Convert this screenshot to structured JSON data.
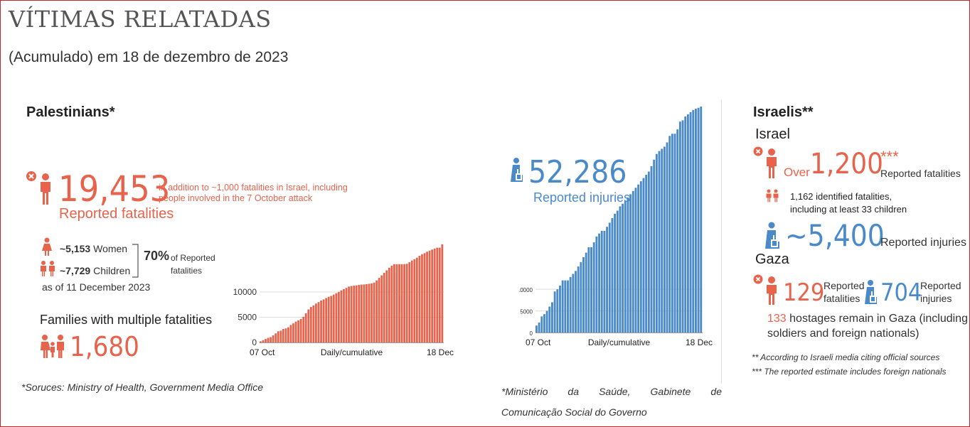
{
  "header": {
    "title": "VÍTIMAS RELATADAS",
    "subtitle": "(Acumulado) em 18 de dezembro de 2023"
  },
  "palestinians": {
    "heading": "Palestinians*",
    "fatalities_value": "19,453",
    "fatalities_label": "Reported fatalities",
    "addition_line1": "in addition to ~1,000 fatalities in Israel, including",
    "addition_line2": "people involved in the 7 October attack",
    "injuries_value": "52,286",
    "injuries_label": "Reported injuries",
    "women_value": "~5,153",
    "women_label": "Women",
    "children_value": "~7,729",
    "children_label": "Children",
    "as_of": "as of 11 December 2023",
    "percent_value": "70%",
    "percent_label_1": "of Reported",
    "percent_label_2": "fatalities",
    "families_label": "Families with multiple fatalities",
    "families_value": "1,680",
    "source_left": "*Soruces: Ministry of Health, Government Media Office",
    "source_mid_1": "*Ministério da Saúde, Gabinete de",
    "source_mid_2": "Comunicação Social do Governo"
  },
  "israelis": {
    "heading": "Israelis**",
    "israel_label": "Israel",
    "over_label": "Over",
    "fatalities_value": "1,200",
    "fatalities_stars": "***",
    "fatalities_label": "Reported fatalities",
    "identified_line1": "1,162 identified fatalities,",
    "identified_line2": "including at least 33 children",
    "injuries_value": "~5,400",
    "injuries_label": "Reported injuries",
    "gaza_label": "Gaza",
    "gaza_fatalities_value": "129",
    "gaza_fatalities_label_1": "Reported",
    "gaza_fatalities_label_2": "fatalities",
    "gaza_injuries_value": "704",
    "gaza_injuries_label_1": "Reported",
    "gaza_injuries_label_2": "injuries",
    "hostages_value": "133",
    "hostages_line1": "hostages remain in Gaza (including",
    "hostages_line2": "soldiers and foreign nationals)",
    "note1": "** According to Israeli media citing official sources",
    "note2": "*** The reported estimate includes foreign nationals"
  },
  "colors": {
    "orange": "#e8634c",
    "blue": "#4a8ac8"
  },
  "icons": {
    "fatality": "person-with-x-icon",
    "injury": "injured-person-icon",
    "woman": "woman-icon",
    "children": "children-icon",
    "family": "family-icon"
  },
  "chart_data": [
    {
      "type": "bar",
      "x_start_label": "07 Oct",
      "x_end_label": "18 Dec",
      "xlabel": "Daily/cumulative",
      "ylim": [
        0,
        20000
      ],
      "yticks": [
        0,
        5000,
        10000
      ],
      "color": "#e8634c",
      "values": [
        232,
        436,
        687,
        900,
        1055,
        1417,
        1799,
        2215,
        2329,
        2670,
        2778,
        3000,
        3478,
        3785,
        4137,
        4385,
        4651,
        5087,
        5791,
        6546,
        7028,
        7326,
        7703,
        8005,
        8306,
        8525,
        8796,
        9061,
        9227,
        9488,
        9770,
        10022,
        10328,
        10569,
        10818,
        11078,
        11180,
        11255,
        11320,
        11400,
        11470,
        11500,
        11560,
        11630,
        11700,
        11870,
        12300,
        12800,
        13300,
        13800,
        14300,
        14800,
        15207,
        15523,
        15523,
        15523,
        15523,
        15523,
        15599,
        15900,
        16248,
        16500,
        16800,
        17177,
        17487,
        17700,
        17997,
        18205,
        18412,
        18608,
        18787,
        18787,
        19453
      ]
    },
    {
      "type": "bar",
      "x_start_label": "07 Oct",
      "x_end_label": "18 Dec",
      "xlabel": "Daily/cumulative",
      "ylim": [
        0,
        52286
      ],
      "yticks": [
        0,
        5000,
        10000
      ],
      "color": "#4a8ac8",
      "values": [
        1610,
        2300,
        3726,
        4250,
        5000,
        6000,
        7000,
        9500,
        10000,
        10859,
        12065,
        12065,
        12065,
        12850,
        13561,
        14245,
        15273,
        16297,
        17439,
        18484,
        19734,
        19734,
        20861,
        22219,
        22911,
        23516,
        23516,
        24454,
        25408,
        26475,
        27490,
        28200,
        29200,
        29800,
        30500,
        31250,
        32000,
        32750,
        33500,
        34250,
        35000,
        35750,
        36500,
        37247,
        38500,
        40000,
        41316,
        42000,
        42500,
        43000,
        44000,
        45500,
        46000,
        46000,
        47000,
        48800,
        49100,
        50000,
        50500,
        51000,
        51500,
        51800,
        52000,
        52286
      ]
    }
  ]
}
